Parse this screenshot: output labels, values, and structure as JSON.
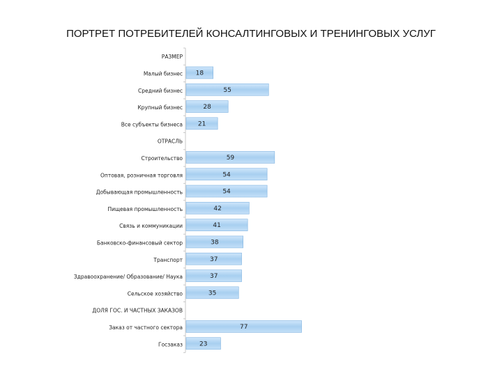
{
  "chart_data": {
    "type": "bar",
    "orientation": "horizontal",
    "title": "ПОРТРЕТ ПОТРЕБИТЕЛЕЙ КОНСАЛТИНГОВЫХ И ТРЕНИНГОВЫХ УСЛУГ",
    "xlim": [
      0,
      100
    ],
    "grid": false,
    "legend": "none",
    "bar_color": "#a8cff0",
    "bar_edge_color": "#7fb2e0",
    "rows": [
      {
        "label": "РАЗМЕР",
        "section": true
      },
      {
        "label": "Малый бизнес",
        "value": 18
      },
      {
        "label": "Средний бизнес",
        "value": 55
      },
      {
        "label": "Крупный бизнес",
        "value": 28
      },
      {
        "label": "Все субъекты бизнеса",
        "value": 21
      },
      {
        "label": "ОТРАСЛЬ",
        "section": true
      },
      {
        "label": "Строительство",
        "value": 59
      },
      {
        "label": "Оптовая, розничная торговля",
        "value": 54
      },
      {
        "label": "Добывающая промышленность",
        "value": 54
      },
      {
        "label": "Пищевая промышленность",
        "value": 42
      },
      {
        "label": "Связь и коммуникации",
        "value": 41
      },
      {
        "label": "Банковско-финансовый сектор",
        "value": 38
      },
      {
        "label": "Транспорт",
        "value": 37
      },
      {
        "label": "Здравоохранение/ Образование/ Наука",
        "value": 37
      },
      {
        "label": "Сельское хозяйство",
        "value": 35
      },
      {
        "label": "ДОЛЯ ГОС. И ЧАСТНЫХ ЗАКАЗОВ",
        "section": true
      },
      {
        "label": "Заказ от частного сектора",
        "value": 77
      },
      {
        "label": "Госзаказ",
        "value": 23
      }
    ]
  }
}
